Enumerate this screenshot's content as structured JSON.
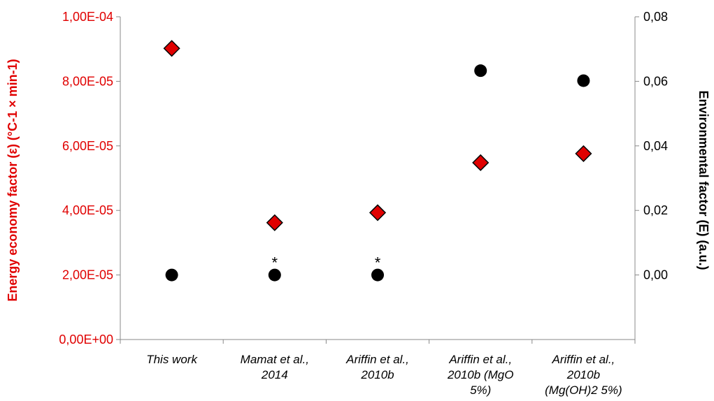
{
  "chart_data": {
    "type": "scatter",
    "categories": [
      [
        "This work"
      ],
      [
        "Mamat et al.,",
        "2014"
      ],
      [
        "Ariffin et al.,",
        "2010b"
      ],
      [
        "Ariffin et al.,",
        "2010b (MgO",
        "5%)"
      ],
      [
        "Ariffin et al.,",
        "2010b",
        "(Mg(OH)2 5%)"
      ]
    ],
    "left_axis": {
      "label": "Energy economy factor (ε) (°C-1 × min-1)",
      "ylim": [
        0,
        0.0001
      ],
      "ticks": [
        0,
        2e-05,
        4e-05,
        6e-05,
        8e-05,
        0.0001
      ],
      "tick_labels": [
        "0,00E+00",
        "2,00E-05",
        "4,00E-05",
        "6,00E-05",
        "8,00E-05",
        "1,00E-04"
      ],
      "color": "#e00000"
    },
    "right_axis": {
      "label": "Environmental factor (E) (a.u.)",
      "ylim": [
        -0.02,
        0.08
      ],
      "ticks": [
        0,
        0.02,
        0.04,
        0.06,
        0.08
      ],
      "tick_labels": [
        "0,00",
        "0,02",
        "0,04",
        "0,06",
        "0,08"
      ],
      "color": "#000000"
    },
    "series": [
      {
        "axis": "left",
        "marker": "diamond",
        "color": "#e00000",
        "values": [
          9.02e-05,
          3.62e-05,
          3.93e-05,
          5.48e-05,
          5.76e-05
        ]
      },
      {
        "axis": "right",
        "marker": "circle",
        "color": "#000000",
        "values": [
          0.0,
          0.0,
          0.0,
          0.0633,
          0.0602
        ]
      }
    ],
    "annotations": [
      {
        "category_index": 1,
        "text": "*"
      },
      {
        "category_index": 2,
        "text": "*"
      }
    ],
    "grid": false,
    "legend": "none"
  }
}
